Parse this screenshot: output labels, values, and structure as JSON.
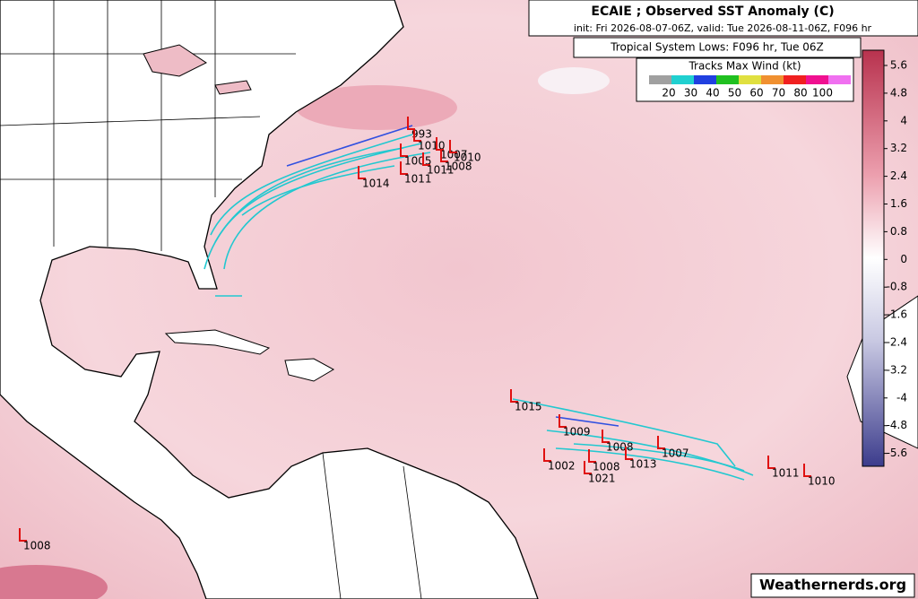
{
  "header": {
    "title": "ECAIE ; Observed SST Anomaly (C)",
    "subtitle": "init: Fri 2026-08-07-06Z, valid: Tue 2026-08-11-06Z, F096 hr"
  },
  "lows_label": "Tropical System Lows: F096 hr, Tue 06Z",
  "legend": {
    "title": "Tracks Max Wind (kt)",
    "labels": [
      "20",
      "30",
      "40",
      "50",
      "60",
      "70",
      "80",
      "100"
    ]
  },
  "colorbar": {
    "labels": [
      "5.6",
      "4.8",
      "4",
      "3.2",
      "2.4",
      "1.6",
      "0.8",
      "0",
      "-0.8",
      "-1.6",
      "-2.4",
      "-3.2",
      "-4",
      "-4.8",
      "-5.6"
    ]
  },
  "lows": [
    "993",
    "1010",
    "1007",
    "1010",
    "1005",
    "1011",
    "1008",
    "1014",
    "1011",
    "1015",
    "1009",
    "1008",
    "1007",
    "1013",
    "1002",
    "1008",
    "1021",
    "1011",
    "1010",
    "1008"
  ],
  "watermark": "Weathernerds.org"
}
